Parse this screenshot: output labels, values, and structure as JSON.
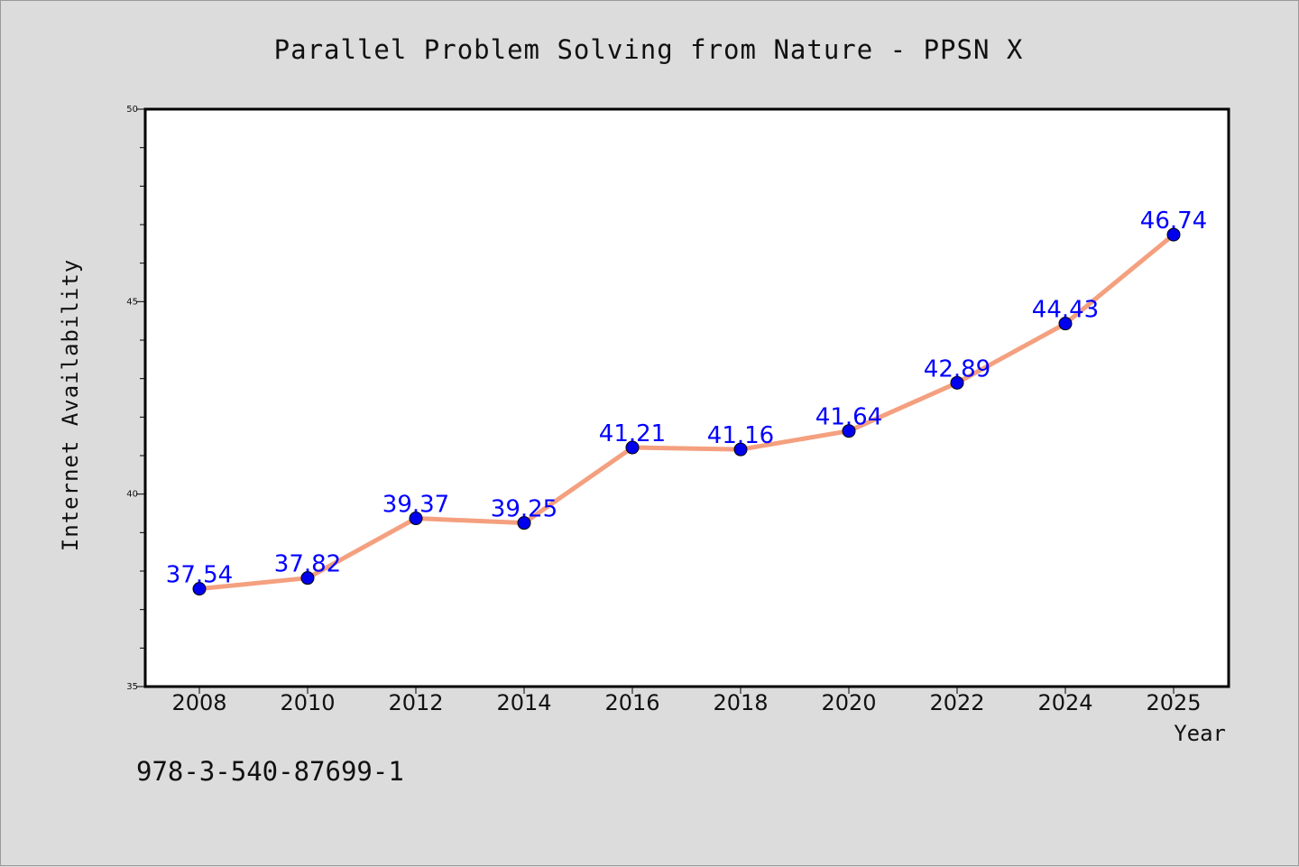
{
  "chart_data": {
    "type": "line",
    "title": "Parallel Problem Solving from Nature - PPSN X",
    "xlabel": "Year",
    "ylabel": "Internet Availability",
    "categories": [
      "2008",
      "2010",
      "2012",
      "2014",
      "2016",
      "2018",
      "2020",
      "2022",
      "2024",
      "2025"
    ],
    "series": [
      {
        "values": [
          37.54,
          37.82,
          39.37,
          39.25,
          41.21,
          41.16,
          41.64,
          42.89,
          44.43,
          46.74
        ],
        "line_color": "#f4a07f",
        "marker_color": "#0000ee"
      }
    ],
    "data_labels": [
      "37.54",
      "37.82",
      "39.37",
      "39.25",
      "41.21",
      "41.16",
      "41.64",
      "42.89",
      "44.43",
      "46.74"
    ],
    "ylim": [
      35,
      50
    ],
    "y_ticks": [
      "35",
      "40",
      "45",
      "50"
    ],
    "grid": false,
    "label_color": "#0000ff"
  },
  "footer_text": "978-3-540-87699-1"
}
